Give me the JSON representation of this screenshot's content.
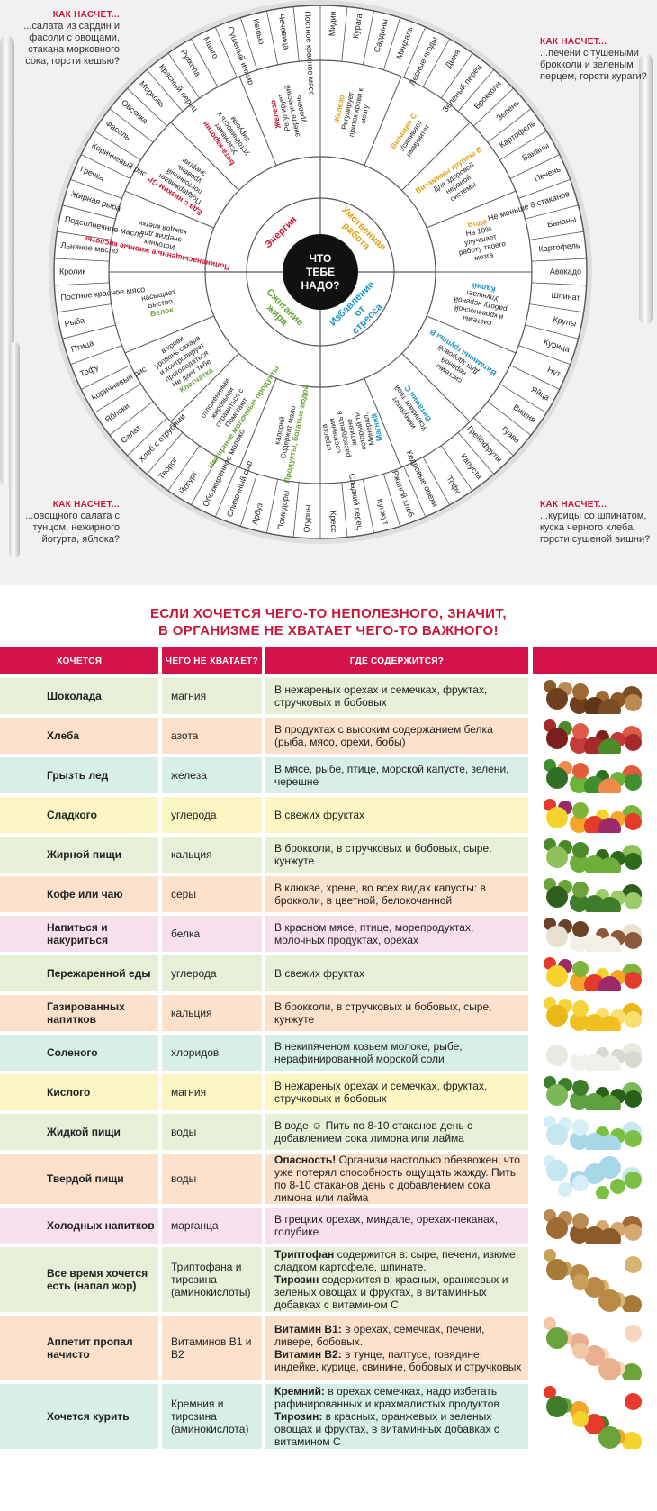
{
  "wheel": {
    "center": [
      "ЧТО",
      "ТЕБЕ",
      "НАДО?"
    ],
    "categories": [
      {
        "label": "Энергия",
        "color": "#c8173a"
      },
      {
        "label": "Умственная работа",
        "color": "#e2a11b"
      },
      {
        "label": "Избавление от стресса",
        "color": "#1e96c4"
      },
      {
        "label": "Сжигание жира",
        "color": "#6aa33a"
      }
    ],
    "nutrients": [
      {
        "name": "Железо",
        "desc": "Регулирует приток крови к мозгу",
        "color": "#e2a11b"
      },
      {
        "name": "Витамин С",
        "desc": "Усиливает иммунитет",
        "color": "#e2a11b"
      },
      {
        "name": "Витамины группы В",
        "desc": "Для здоровой нервной системы",
        "color": "#e2a11b"
      },
      {
        "name": "Вода",
        "desc": "На 10% улучшает работу твоего мозга",
        "color": "#e2a11b"
      },
      {
        "name": "Калий",
        "desc": "Улучшает работу нервной и кровеносной системы",
        "color": "#1e96c4"
      },
      {
        "name": "Витамины группы В",
        "desc": "Для здоровой нервной системы",
        "color": "#1e96c4"
      },
      {
        "name": "Витамин С",
        "desc": "Усиливает твой иммунитет",
        "color": "#1e96c4"
      },
      {
        "name": "Магний",
        "desc": "Минерал, который ты активно расходуешь в состоянии стресса",
        "color": "#1e96c4"
      },
      {
        "name": "Продукты, богатые водой",
        "desc": "Содержат мало калорий",
        "color": "#6aa33a"
      },
      {
        "name": "Нежирные молочные продукты",
        "desc": "Помогают справиться с жировыми отложениями",
        "color": "#6aa33a"
      },
      {
        "name": "Клетчатка",
        "desc": "Не дает тебе проголодаться и контролирует уровень сахара в крови",
        "color": "#6aa33a"
      },
      {
        "name": "Белок",
        "desc": "Быстро насыщает",
        "color": "#6aa33a"
      },
      {
        "name": "Полиненасыщенные жирные кислоты",
        "desc": "Источник энергии для каждой клетки",
        "color": "#c8173a"
      },
      {
        "name": "Еда с низким GI*",
        "desc": "Поддерживает постоянный уровень энергии",
        "color": "#c8173a"
      },
      {
        "name": "Бета-каротин",
        "desc": "Усиливает устойчивость к вирусам",
        "color": "#c8173a"
      },
      {
        "name": "Железо",
        "desc": "Регулирует энергетический уровень",
        "color": "#c8173a"
      }
    ],
    "foods": [
      "Мидии",
      "Курага",
      "Сардины",
      "Миндаль",
      "Лесные ягоды",
      "Дыня",
      "Зеленый перец",
      "Брокколи",
      "Зелень",
      "Картофель",
      "Бананы",
      "Печень",
      "Не меньше 8 стаканов",
      "Бананы",
      "Картофель",
      "Авокадо",
      "Шпинат",
      "Крупы",
      "Курица",
      "Нут",
      "Яйца",
      "Вишня",
      "Гуава",
      "Грейпфруты",
      "Капуста",
      "Тофу",
      "Кедровые орехи",
      "Ржаной хлеб",
      "Кунжут",
      "Сладкий перец",
      "Кресс",
      "Огурцы",
      "Помидоры",
      "Арбуз",
      "Сливочный сыр",
      "Обезжиренное молоко",
      "Йогурт",
      "Творог",
      "Хлеб с отрубями",
      "Салат",
      "Яблоки",
      "Коричневый рис",
      "Тофу",
      "Птица",
      "Рыба",
      "Постное красное мясо",
      "Кролик",
      "Льняное масло",
      "Подсолнечное масло",
      "Жирная рыба",
      "Гречка",
      "Коричневый рис",
      "Фасоль",
      "Овсянка",
      "Морковь",
      "Красный перец",
      "Руккола",
      "Манго",
      "Сушеный инжир",
      "Кешью",
      "Чечевица",
      "Постное красное мясо"
    ]
  },
  "corners": {
    "tl": {
      "heading": "КАК НАСЧЕТ...",
      "text": "...салата из сардин и фасоли с овощами, стакана морковного сока, горсти кешью?"
    },
    "tr": {
      "heading": "КАК НАСЧЕТ...",
      "text": "...печени с тушеными брокколи и зеленым перцем, горсти кураги?"
    },
    "bl": {
      "heading": "КАК НАСЧЕТ...",
      "text": "...овощного салата с тунцом, нежирного йогурта, яблока?"
    },
    "br": {
      "heading": "КАК НАСЧЕТ...",
      "text": "...курицы со шпинатом, куска черного хлеба, горсти сушеной вишни?"
    }
  },
  "headline": [
    "ЕСЛИ ХОЧЕТСЯ ЧЕГО-ТО НЕПОЛЕЗНОГО, ЗНАЧИТ,",
    "В ОРГАНИЗМЕ НЕ ХВАТАЕТ ЧЕГО-ТО ВАЖНОГО!"
  ],
  "table": {
    "headers": [
      "ХОЧЕТСЯ",
      "ЧЕГО НЕ ХВАТАЕТ?",
      "ГДЕ СОДЕРЖИТСЯ?"
    ],
    "rows": [
      {
        "craving": "Шоколада",
        "lack": "магния",
        "source": [
          {
            "t": "В нежареных орехах и семечках, фруктах, стручковых и бобовых"
          }
        ],
        "bg": "#e6efd8",
        "pic": "nuts"
      },
      {
        "craving": "Хлеба",
        "lack": "азота",
        "source": [
          {
            "t": "В продуктах с высоким содержанием белка (рыба, мясо, орехи, бобы)"
          }
        ],
        "bg": "#fbe0cc",
        "pic": "meat"
      },
      {
        "craving": "Грызть лед",
        "lack": "железа",
        "source": [
          {
            "t": "В мясе, рыбе, птице, морской капусте, зелени, черешне"
          }
        ],
        "bg": "#d8eee9",
        "pic": "greens"
      },
      {
        "craving": "Сладкого",
        "lack": "углерода",
        "source": [
          {
            "t": "В свежих фруктах"
          }
        ],
        "bg": "#fbf6c4",
        "pic": "fruits"
      },
      {
        "craving": "Жирной пищи",
        "lack": "кальция",
        "source": [
          {
            "t": "В брокколи, в стручковых и бобовых, сыре, кунжуте"
          }
        ],
        "bg": "#e6efd8",
        "pic": "peas"
      },
      {
        "craving": "Кофе или чаю",
        "lack": "серы",
        "source": [
          {
            "t": "В клюкве, хрене, во всех видах капусты: в брокколи, в цветной, белокочанной"
          }
        ],
        "bg": "#fbe0cc",
        "pic": "cabbage"
      },
      {
        "craving": "Напиться и накуриться",
        "lack": "белка",
        "source": [
          {
            "t": "В красном мясе, птице, морепродуктах, молочных продуктах, орехах"
          }
        ],
        "bg": "#f7e0ec",
        "pic": "coconut"
      },
      {
        "craving": "Пережаренной еды",
        "lack": "углерода",
        "source": [
          {
            "t": "В свежих фруктах"
          }
        ],
        "bg": "#e6efd8",
        "pic": "fruits"
      },
      {
        "craving": "Газированных напитков",
        "lack": "кальция",
        "source": [
          {
            "t": "В брокколи, в стручковых и бобовых, сыре, кунжуте"
          }
        ],
        "bg": "#fbe0cc",
        "pic": "cheese"
      },
      {
        "craving": "Соленого",
        "lack": "хлоридов",
        "source": [
          {
            "t": "В некипяченом козьем молоке, рыбе, нерафинированной морской соли"
          }
        ],
        "bg": "#d8eee9",
        "pic": "milk"
      },
      {
        "craving": "Кислого",
        "lack": "магния",
        "source": [
          {
            "t": "В нежареных орехах и семечках, фруктах, стручковых и бобовых"
          }
        ],
        "bg": "#fbf6c4",
        "pic": "broccoli"
      },
      {
        "craving": "Жидкой пищи",
        "lack": "воды",
        "source": [
          {
            "t": "В воде ☺ Пить по 8-10 стаканов день с добавлением сока лимона или лайма"
          }
        ],
        "bg": "#e6efd8",
        "pic": "water"
      },
      {
        "craving": "Твердой пищи",
        "lack": "воды",
        "source": [
          {
            "b": "Опасность!",
            "t": " Организм настолько обезвожен, что уже потерял способность ощущать жажду. Пить по 8-10 стаканов день с добавлением сока лимона или лайма"
          }
        ],
        "bg": "#fbe0cc",
        "pic": "water"
      },
      {
        "craving": "Холодных напитков",
        "lack": "марганца",
        "source": [
          {
            "t": "В грецких орехах, миндале, орехах-пеканах, голубике"
          }
        ],
        "bg": "#f7e0ec",
        "pic": "walnuts"
      },
      {
        "craving": "Все время хочется есть (напал жор)",
        "lack": "Триптофана и тирозина (аминокислоты)",
        "source": [
          {
            "b": "Триптофан",
            "t": " содержится в: сыре, печени, изюме, сладком картофеле, шпинате."
          },
          {
            "b": "Тирозин",
            "t": " содержится в: красных, оранжевых и зеленых овощах и фруктах, в витаминных добавках с витамином С"
          }
        ],
        "bg": "#e6efd8",
        "pic": "potatoes"
      },
      {
        "craving": "Аппетит пропал начисто",
        "lack": "Витаминов В1 и В2",
        "source": [
          {
            "b": "Витамин В1:",
            "t": " в орехах, семечках, печени, ливере, бобовых."
          },
          {
            "b": "Витамин В2:",
            "t": " в тунце, палтусе, говядине, индейке, курице, свинине, бобовых и стручковых"
          }
        ],
        "bg": "#fbe0cc",
        "pic": "chicken"
      },
      {
        "craving": "Хочется курить",
        "lack": "Кремния и тирозина (аминокислота)",
        "source": [
          {
            "b": "Кремний:",
            "t": " в орехах семечках, надо избегать рафинированных и крахмалистых продуктов"
          },
          {
            "b": "Тирозин:",
            "t": " в красных, оранжевых и зеленых овощах и фруктах, в витаминных добавках с витамином С"
          }
        ],
        "bg": "#d8eee9",
        "pic": "veggies"
      }
    ]
  },
  "colors": {
    "accent": "#c8173a",
    "header": "#d4134a",
    "energy": "#c8173a",
    "brain": "#e2a11b",
    "stress": "#1e96c4",
    "fat": "#6aa33a"
  }
}
